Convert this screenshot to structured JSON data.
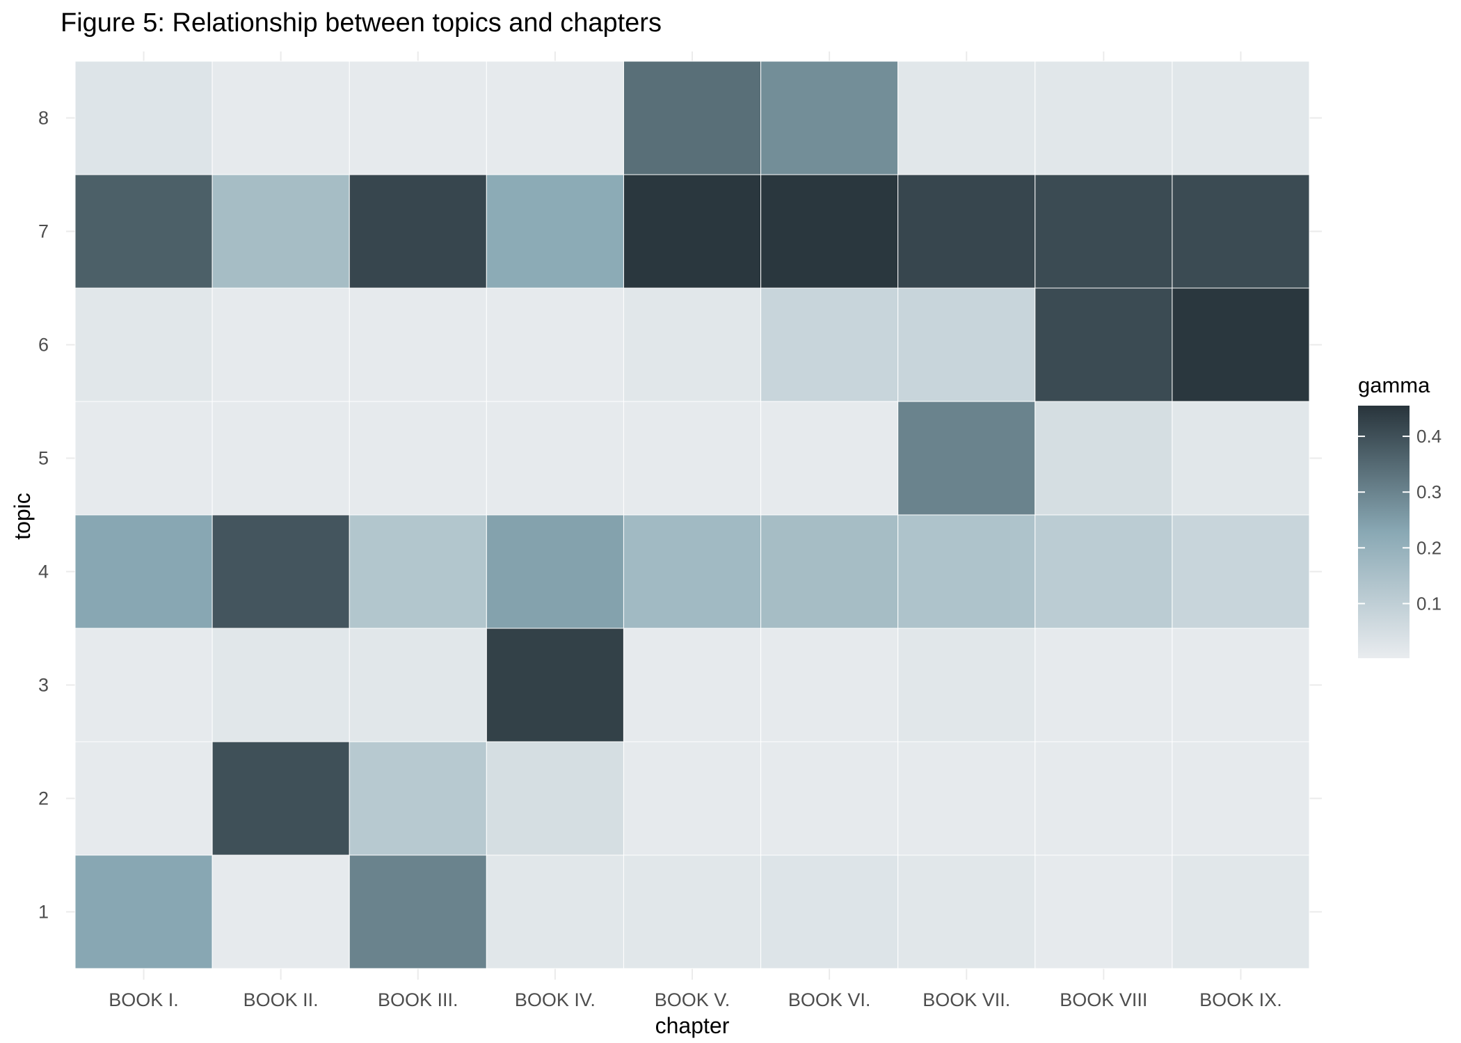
{
  "chart_data": {
    "type": "heatmap",
    "title": "Figure 5: Relationship between topics and chapters",
    "xlabel": "chapter",
    "ylabel": "topic",
    "x_categories": [
      "BOOK I.",
      "BOOK II.",
      "BOOK III.",
      "BOOK IV.",
      "BOOK V.",
      "BOOK VI.",
      "BOOK VII.",
      "BOOK VIII",
      "BOOK IX."
    ],
    "y_categories": [
      "1",
      "2",
      "3",
      "4",
      "5",
      "6",
      "7",
      "8"
    ],
    "values": [
      [
        0.23,
        0.01,
        0.3,
        0.02,
        0.02,
        0.03,
        0.02,
        0.01,
        0.02
      ],
      [
        0.01,
        0.4,
        0.12,
        0.05,
        0.01,
        0.01,
        0.01,
        0.01,
        0.01
      ],
      [
        0.01,
        0.02,
        0.02,
        0.43,
        0.01,
        0.01,
        0.02,
        0.01,
        0.01
      ],
      [
        0.23,
        0.39,
        0.13,
        0.24,
        0.17,
        0.16,
        0.14,
        0.11,
        0.08
      ],
      [
        0.01,
        0.01,
        0.01,
        0.01,
        0.01,
        0.01,
        0.3,
        0.05,
        0.02
      ],
      [
        0.02,
        0.01,
        0.01,
        0.01,
        0.02,
        0.08,
        0.08,
        0.41,
        0.45
      ],
      [
        0.37,
        0.16,
        0.42,
        0.22,
        0.45,
        0.45,
        0.42,
        0.41,
        0.41
      ],
      [
        0.03,
        0.01,
        0.01,
        0.01,
        0.34,
        0.28,
        0.02,
        0.02,
        0.02
      ]
    ],
    "legend": {
      "title": "gamma",
      "ticks": [
        0.1,
        0.2,
        0.3,
        0.4
      ],
      "tick_labels": [
        "0.1",
        "0.2",
        "0.3",
        "0.4"
      ],
      "range": [
        0.002,
        0.455
      ],
      "low_color": "#e9ecef",
      "high_color": "#28343b",
      "placement": "right"
    },
    "grid": true
  }
}
